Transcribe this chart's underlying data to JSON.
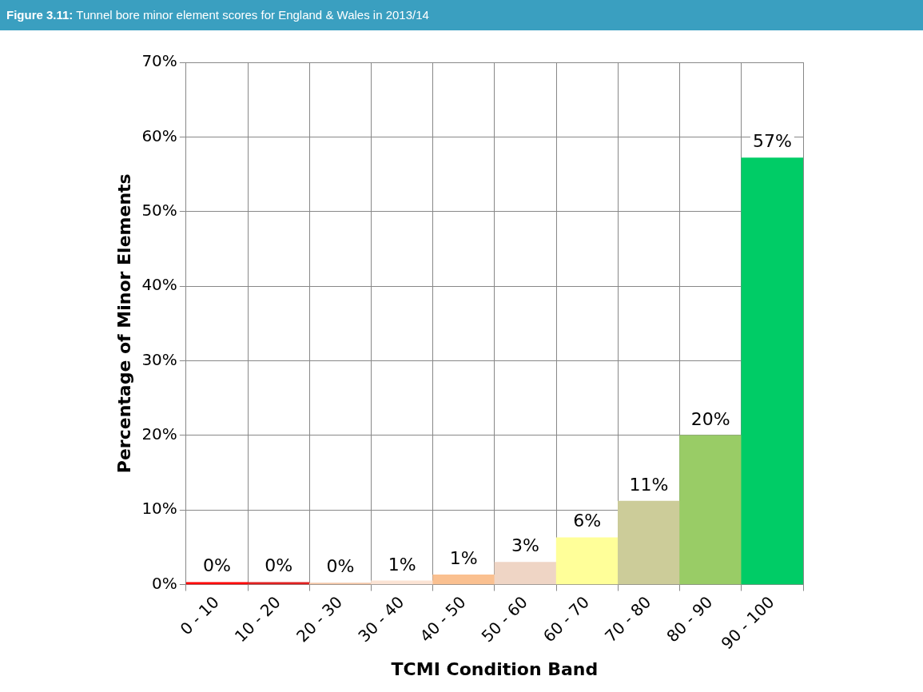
{
  "chart_data": {
    "type": "bar",
    "title": "Figure 3.11: Tunnel bore minor element scores for England & Wales in 2013/14",
    "xlabel": "TCMI Condition Band",
    "ylabel": "Percentage of Minor Elements",
    "categories": [
      "0 - 10",
      "10 - 20",
      "20 - 30",
      "30 - 40",
      "40 - 50",
      "50 - 60",
      "60 - 70",
      "70 - 80",
      "80 - 90",
      "90 - 100"
    ],
    "values": [
      0.3,
      0.3,
      0.2,
      0.5,
      1.3,
      3.0,
      6.3,
      11.2,
      20.0,
      57.2
    ],
    "value_labels": [
      "0%",
      "0%",
      "0%",
      "1%",
      "1%",
      "3%",
      "6%",
      "11%",
      "20%",
      "57%"
    ],
    "colors": [
      "#ff0000",
      "#e02020",
      "#f4c7a8",
      "#fbe3d4",
      "#fac090",
      "#efd5c5",
      "#ffff99",
      "#cccc99",
      "#99cc66",
      "#00cc66"
    ],
    "ylim": [
      0,
      70
    ],
    "yticks": [
      {
        "value": 0,
        "label": "0%"
      },
      {
        "value": 10,
        "label": "10%"
      },
      {
        "value": 20,
        "label": "20%"
      },
      {
        "value": 30,
        "label": "30%"
      },
      {
        "value": 40,
        "label": "40%"
      },
      {
        "value": 50,
        "label": "50%"
      },
      {
        "value": 60,
        "label": "60%"
      },
      {
        "value": 70,
        "label": "70%"
      }
    ],
    "grid": true,
    "legend": false
  }
}
